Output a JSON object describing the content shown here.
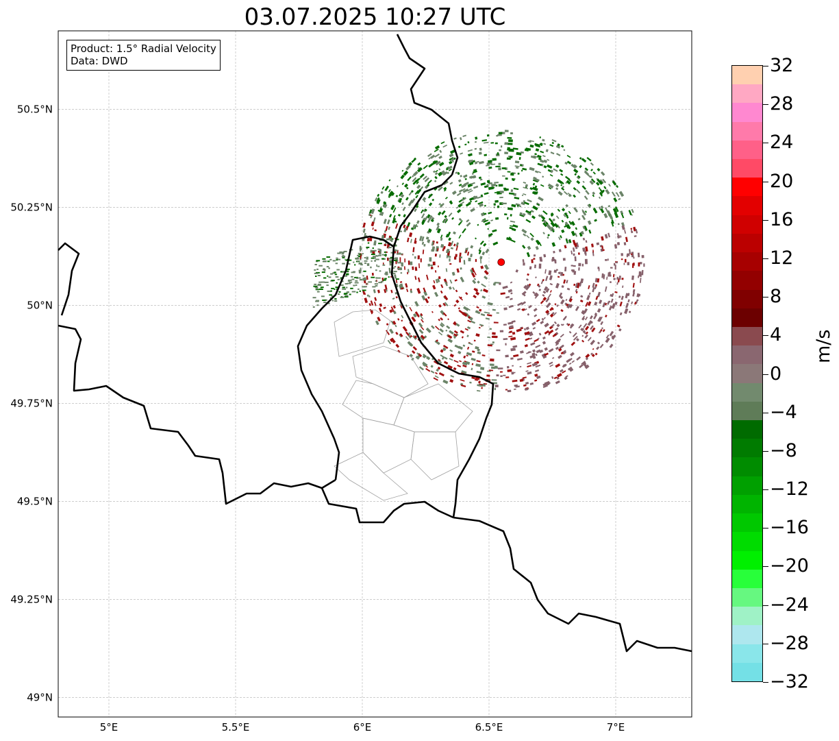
{
  "title": "03.07.2025 10:27 UTC",
  "info": {
    "product": "Product: 1.5° Radial Velocity",
    "source": "Data: DWD"
  },
  "map": {
    "lon_range": [
      4.8,
      7.3
    ],
    "lat_range": [
      48.95,
      50.7
    ],
    "lon_ticks": [
      {
        "value": 5.0,
        "label": "5°E"
      },
      {
        "value": 5.5,
        "label": "5.5°E"
      },
      {
        "value": 6.0,
        "label": "6°E"
      },
      {
        "value": 6.5,
        "label": "6.5°E"
      },
      {
        "value": 7.0,
        "label": "7°E"
      }
    ],
    "lat_ticks": [
      {
        "value": 49.0,
        "label": "49°N"
      },
      {
        "value": 49.25,
        "label": "49.25°N"
      },
      {
        "value": 49.5,
        "label": "49.5°N"
      },
      {
        "value": 49.75,
        "label": "49.75°N"
      },
      {
        "value": 50.0,
        "label": "50°N"
      },
      {
        "value": 50.25,
        "label": "50.25°N"
      },
      {
        "value": 50.5,
        "label": "50.5°N"
      }
    ],
    "grid": true,
    "radar_site": {
      "lon": 6.548,
      "lat": 50.11,
      "color": "#ff0000"
    },
    "echo_colors": {
      "approaching_strong": "#066b00",
      "approaching_weak": "#6b8468",
      "receding_weak": "#86616b",
      "receding_strong": "#a01010"
    },
    "border_color": "#000000",
    "district_color": "#a0a0a0"
  },
  "colorbar": {
    "unit": "m/s",
    "min": -32,
    "max": 32,
    "step": 2,
    "tick_labels": [
      "32",
      "28",
      "24",
      "20",
      "16",
      "12",
      "8",
      "4",
      "0",
      "−4",
      "−8",
      "−12",
      "−16",
      "−20",
      "−24",
      "−28",
      "−32"
    ],
    "colors_top_to_bottom": [
      "#ffd0b0",
      "#ffa8c3",
      "#ff88d0",
      "#ff7aaa",
      "#ff6088",
      "#ff4a66",
      "#ff0000",
      "#e30000",
      "#d00000",
      "#bb0000",
      "#a70000",
      "#930000",
      "#800000",
      "#6c0000",
      "#8a4a4f",
      "#8a6770",
      "#8b7878",
      "#728a6e",
      "#5f7c58",
      "#006b00",
      "#007b00",
      "#008c00",
      "#00a000",
      "#00b400",
      "#00c800",
      "#00dc00",
      "#00f000",
      "#28ff3a",
      "#66f880",
      "#9ff2c6",
      "#aee7ee",
      "#8ae6ea",
      "#74e0e6"
    ]
  }
}
